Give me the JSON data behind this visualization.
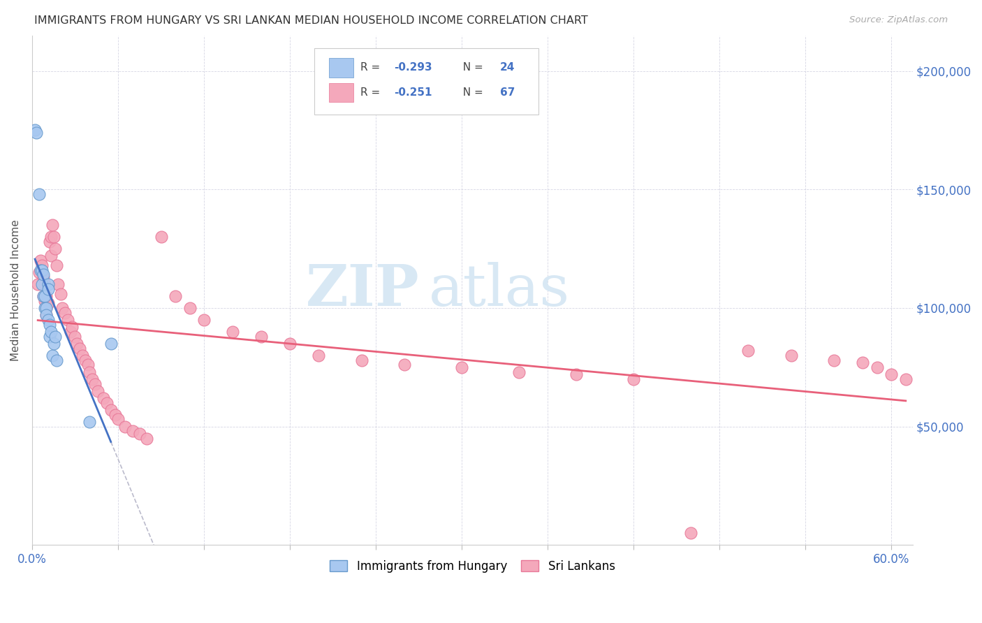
{
  "title": "IMMIGRANTS FROM HUNGARY VS SRI LANKAN MEDIAN HOUSEHOLD INCOME CORRELATION CHART",
  "source": "Source: ZipAtlas.com",
  "ylabel": "Median Household Income",
  "ytick_labels": [
    "$50,000",
    "$100,000",
    "$150,000",
    "$200,000"
  ],
  "ytick_values": [
    50000,
    100000,
    150000,
    200000
  ],
  "ylim": [
    0,
    215000
  ],
  "xlim": [
    0.0,
    0.615
  ],
  "legend_label1": "Immigrants from Hungary",
  "legend_label2": "Sri Lankans",
  "color_hungary": "#A8C8F0",
  "color_srilanka": "#F4A8BB",
  "color_hungary_edge": "#6699CC",
  "color_srilanka_edge": "#E87898",
  "color_hungary_line": "#4472C4",
  "color_srilanka_line": "#E8607A",
  "watermark_color": "#D8E8F4",
  "hungary_x": [
    0.002,
    0.003,
    0.005,
    0.006,
    0.007,
    0.007,
    0.008,
    0.008,
    0.009,
    0.009,
    0.01,
    0.01,
    0.011,
    0.011,
    0.011,
    0.012,
    0.012,
    0.013,
    0.014,
    0.015,
    0.016,
    0.017,
    0.04,
    0.055
  ],
  "hungary_y": [
    175000,
    174000,
    148000,
    116000,
    116000,
    110000,
    114000,
    105000,
    105000,
    100000,
    100000,
    97000,
    95000,
    110000,
    108000,
    93000,
    88000,
    90000,
    80000,
    85000,
    88000,
    78000,
    52000,
    85000
  ],
  "srilanka_x": [
    0.004,
    0.005,
    0.006,
    0.007,
    0.008,
    0.008,
    0.009,
    0.009,
    0.01,
    0.01,
    0.01,
    0.011,
    0.012,
    0.013,
    0.013,
    0.014,
    0.015,
    0.016,
    0.017,
    0.018,
    0.02,
    0.021,
    0.023,
    0.025,
    0.027,
    0.028,
    0.03,
    0.031,
    0.033,
    0.035,
    0.037,
    0.039,
    0.04,
    0.042,
    0.044,
    0.046,
    0.05,
    0.052,
    0.055,
    0.058,
    0.06,
    0.065,
    0.07,
    0.075,
    0.08,
    0.09,
    0.1,
    0.11,
    0.12,
    0.14,
    0.16,
    0.18,
    0.2,
    0.23,
    0.26,
    0.3,
    0.34,
    0.38,
    0.42,
    0.46,
    0.5,
    0.53,
    0.56,
    0.58,
    0.59,
    0.6,
    0.61
  ],
  "srilanka_y": [
    110000,
    115000,
    120000,
    118000,
    113000,
    105000,
    110000,
    103000,
    105000,
    100000,
    97000,
    102000,
    128000,
    130000,
    122000,
    135000,
    130000,
    125000,
    118000,
    110000,
    106000,
    100000,
    98000,
    95000,
    90000,
    92000,
    88000,
    85000,
    83000,
    80000,
    78000,
    76000,
    73000,
    70000,
    68000,
    65000,
    62000,
    60000,
    57000,
    55000,
    53000,
    50000,
    48000,
    47000,
    45000,
    130000,
    105000,
    100000,
    95000,
    90000,
    88000,
    85000,
    80000,
    78000,
    76000,
    75000,
    73000,
    72000,
    70000,
    5000,
    82000,
    80000,
    78000,
    77000,
    75000,
    72000,
    70000
  ]
}
